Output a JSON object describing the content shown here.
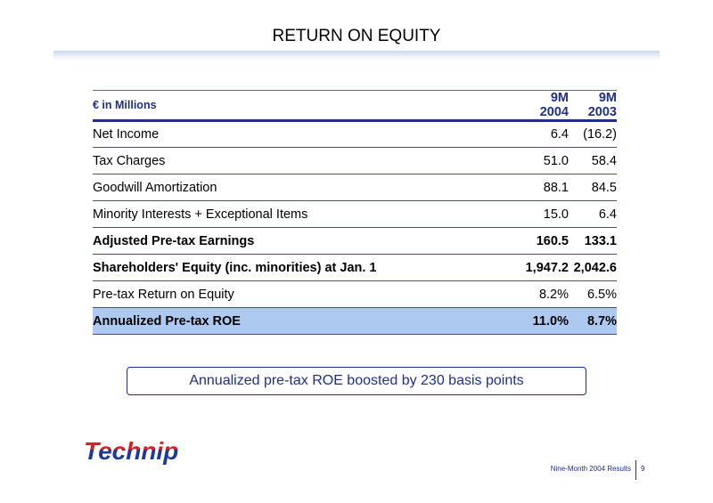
{
  "slide": {
    "title": "RETURN ON EQUITY",
    "callout": "Annualized pre-tax ROE boosted by 230 basis points",
    "footer": "Nine-Month 2004 Results",
    "page_number": "9",
    "logo_text": "Technip"
  },
  "table": {
    "header": {
      "label": "€ in Millions",
      "col1": "9M 2004",
      "col2": "9M 2003"
    },
    "rows": [
      {
        "label": "Net Income",
        "v1": "6.4",
        "v2": "(16.2)"
      },
      {
        "label": "Tax Charges",
        "v1": "51.0",
        "v2": "58.4"
      },
      {
        "label": "Goodwill Amortization",
        "v1": "88.1",
        "v2": "84.5"
      },
      {
        "label": "Minority Interests + Exceptional Items",
        "v1": "15.0",
        "v2": "6.4"
      },
      {
        "label": "Adjusted Pre-tax Earnings",
        "v1": "160.5",
        "v2": "133.1"
      },
      {
        "label": "Shareholders' Equity (inc. minorities) at Jan. 1",
        "v1": "1,947.2",
        "v2": "2,042.6"
      },
      {
        "label": "Pre-tax Return on Equity",
        "v1": "8.2%",
        "v2": "6.5%"
      },
      {
        "label": "Annualized Pre-tax ROE",
        "v1": "11.0%",
        "v2": "8.7%"
      }
    ]
  },
  "colors": {
    "brand_navy": "#1f2e8c",
    "logo_blue": "#1a3a9c",
    "logo_red": "#d62027",
    "highlight_row": "#aec9ef"
  }
}
